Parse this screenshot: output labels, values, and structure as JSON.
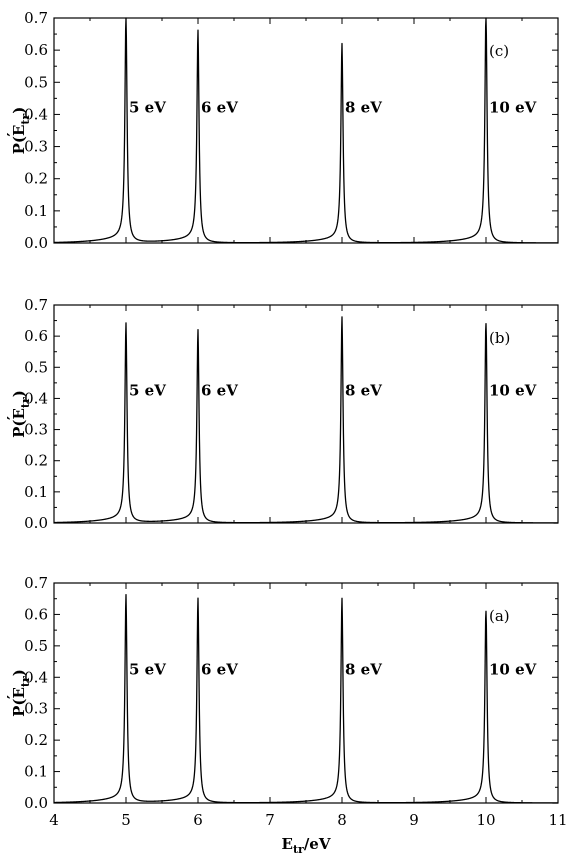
{
  "chart_data": [
    {
      "type": "line",
      "panel_label": "(c)",
      "ylabel_main": "P(E",
      "ylabel_sub": "tr",
      "ylabel_close": ")",
      "xlim": [
        4,
        11
      ],
      "ylim": [
        0,
        0.7
      ],
      "x_ticks": [
        "4",
        "5",
        "6",
        "7",
        "8",
        "9",
        "10",
        "11"
      ],
      "y_ticks": [
        "0.0",
        "0.1",
        "0.2",
        "0.3",
        "0.4",
        "0.5",
        "0.6",
        "0.7"
      ],
      "peaks": [
        {
          "x": 5,
          "height": 0.69,
          "label": "5 eV"
        },
        {
          "x": 6,
          "height": 0.64,
          "label": "6 eV"
        },
        {
          "x": 8,
          "height": 0.6,
          "label": "8 eV"
        },
        {
          "x": 10,
          "height": 0.7,
          "label": "10 eV"
        }
      ]
    },
    {
      "type": "line",
      "panel_label": "(b)",
      "ylabel_main": "P(E",
      "ylabel_sub": "tr",
      "ylabel_close": ")",
      "xlim": [
        4,
        11
      ],
      "ylim": [
        0,
        0.7
      ],
      "x_ticks": [
        "4",
        "5",
        "6",
        "7",
        "8",
        "9",
        "10",
        "11"
      ],
      "y_ticks": [
        "0.0",
        "0.1",
        "0.2",
        "0.3",
        "0.4",
        "0.5",
        "0.6",
        "0.7"
      ],
      "peaks": [
        {
          "x": 5,
          "height": 0.62,
          "label": "5 eV"
        },
        {
          "x": 6,
          "height": 0.6,
          "label": "6 eV"
        },
        {
          "x": 8,
          "height": 0.64,
          "label": "8 eV"
        },
        {
          "x": 10,
          "height": 0.64,
          "label": "10 eV"
        }
      ]
    },
    {
      "type": "line",
      "panel_label": "(a)",
      "ylabel_main": "P(E",
      "ylabel_sub": "tr",
      "ylabel_close": ")",
      "xlabel_main": "E",
      "xlabel_sub": "tr",
      "xlabel_rest": "/eV",
      "xlim": [
        4,
        11
      ],
      "ylim": [
        0,
        0.7
      ],
      "x_ticks": [
        "4",
        "5",
        "6",
        "7",
        "8",
        "9",
        "10",
        "11"
      ],
      "y_ticks": [
        "0.0",
        "0.1",
        "0.2",
        "0.3",
        "0.4",
        "0.5",
        "0.6",
        "0.7"
      ],
      "peaks": [
        {
          "x": 5,
          "height": 0.64,
          "label": "5 eV"
        },
        {
          "x": 6,
          "height": 0.63,
          "label": "6 eV"
        },
        {
          "x": 8,
          "height": 0.63,
          "label": "8 eV"
        },
        {
          "x": 10,
          "height": 0.61,
          "label": "10 eV"
        }
      ]
    }
  ]
}
